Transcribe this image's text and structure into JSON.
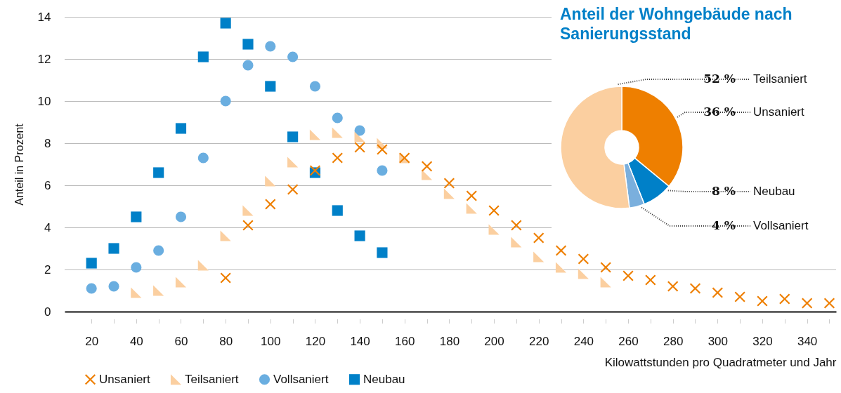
{
  "chart_data": [
    {
      "type": "scatter",
      "xlabel": "Kilowattstunden pro Quadratmeter und Jahr",
      "ylabel": "Anteil in Prozent",
      "xlim": [
        8,
        353
      ],
      "ylim": [
        0,
        14
      ],
      "xticks": [
        20,
        {
          "value": 30,
          "label": null
        },
        40,
        {
          "value": 50,
          "label": null
        },
        60,
        {
          "value": 70,
          "label": null
        },
        80,
        {
          "value": 90,
          "label": null
        },
        100,
        {
          "value": 110,
          "label": null
        },
        120,
        {
          "value": 130,
          "label": null
        },
        140,
        {
          "value": 150,
          "label": null
        },
        160,
        {
          "value": 170,
          "label": null
        },
        180,
        {
          "value": 190,
          "label": null
        },
        200,
        {
          "value": 210,
          "label": null
        },
        220,
        {
          "value": 230,
          "label": null
        },
        240,
        {
          "value": 250,
          "label": null
        },
        260,
        {
          "value": 270,
          "label": null
        },
        280,
        {
          "value": 290,
          "label": null
        },
        300,
        {
          "value": 310,
          "label": null
        },
        320,
        {
          "value": 330,
          "label": null
        },
        340,
        {
          "value": 350,
          "label": null
        }
      ],
      "yticks": [
        0,
        2,
        4,
        6,
        8,
        10,
        12,
        14
      ],
      "grid": "y",
      "legend": "bottom left",
      "series": [
        {
          "name": "Unsaniert",
          "color": "#ee7f00",
          "marker": "cross",
          "x": [
            80,
            90,
            100,
            110,
            120,
            130,
            140,
            150,
            160,
            170,
            180,
            190,
            200,
            210,
            220,
            230,
            240,
            250,
            260,
            270,
            280,
            290,
            300,
            310,
            320,
            330,
            340,
            350
          ],
          "values": [
            1.6,
            4.1,
            5.1,
            5.8,
            6.7,
            7.3,
            7.8,
            7.7,
            7.3,
            6.9,
            6.1,
            5.5,
            4.8,
            4.1,
            3.5,
            2.9,
            2.5,
            2.1,
            1.7,
            1.5,
            1.2,
            1.1,
            0.9,
            0.7,
            0.5,
            0.6,
            0.4,
            0.4
          ]
        },
        {
          "name": "Teilsaniert",
          "color": "#fbcfa0",
          "marker": "triangle",
          "x": [
            40,
            50,
            60,
            70,
            80,
            90,
            100,
            110,
            120,
            130,
            140,
            150,
            160,
            170,
            180,
            190,
            200,
            210,
            220,
            230,
            240,
            250
          ],
          "values": [
            0.9,
            1.0,
            1.4,
            2.2,
            3.6,
            4.8,
            6.2,
            7.1,
            8.4,
            8.5,
            8.3,
            8.0,
            7.3,
            6.5,
            5.6,
            4.9,
            3.9,
            3.3,
            2.6,
            2.1,
            1.8,
            1.4
          ]
        },
        {
          "name": "Vollsaniert",
          "color": "#6aaee0",
          "marker": "circle",
          "x": [
            20,
            30,
            40,
            50,
            60,
            70,
            80,
            90,
            100,
            110,
            120,
            130,
            140,
            150
          ],
          "values": [
            1.1,
            1.2,
            2.1,
            2.9,
            4.5,
            7.3,
            10.0,
            11.7,
            12.6,
            12.1,
            10.7,
            9.2,
            8.6,
            6.7
          ]
        },
        {
          "name": "Neubau",
          "color": "#0080c8",
          "marker": "square",
          "x": [
            20,
            30,
            40,
            50,
            60,
            70,
            80,
            90,
            100,
            110,
            120,
            130,
            140,
            150
          ],
          "values": [
            2.3,
            3.0,
            4.5,
            6.6,
            8.7,
            12.1,
            13.7,
            12.7,
            10.7,
            8.3,
            6.6,
            4.8,
            3.6,
            2.8
          ]
        }
      ]
    },
    {
      "type": "donut",
      "title": "Anteil der Wohngebäude nach Sanierungsstand",
      "categories": [
        "Unsaniert",
        "Neubau",
        "Vollsaniert",
        "Teilsaniert"
      ],
      "values": [
        36,
        8,
        4,
        52
      ],
      "colors": [
        "#ee7f00",
        "#0080c8",
        "#7aafdd",
        "#fbcfa0"
      ],
      "value_labels": [
        "36 %",
        "8 %",
        "4 %",
        "52 %"
      ]
    }
  ]
}
